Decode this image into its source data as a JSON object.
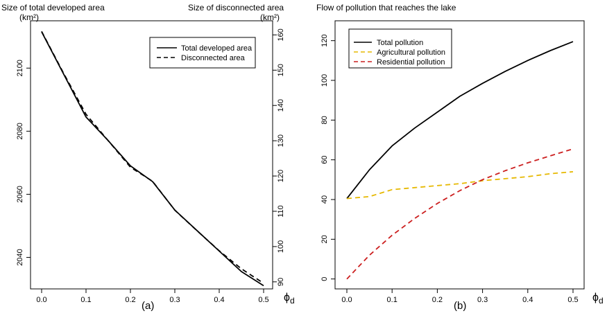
{
  "panels": [
    {
      "label": "(a)",
      "left_title": "Size of total developed area",
      "left_units": "(km²)",
      "right_title": "Size of disconnected area",
      "right_units": "(km²)",
      "x_symbol": "ϕ",
      "x_subscript": "d",
      "legend": [
        "Total developed area",
        "Disconnected area"
      ]
    },
    {
      "label": "(b)",
      "title": "Flow of pollution that reaches the lake",
      "x_symbol": "ϕ",
      "x_subscript": "d",
      "legend": [
        "Total pollution",
        "Agricultural pollution",
        "Residential pollution"
      ]
    }
  ],
  "colors": {
    "total": "#000000",
    "agricultural": "#e6b800",
    "residential": "#cc1f1f"
  },
  "chart_data": [
    {
      "type": "line",
      "title": "",
      "xlabel": "ϕd",
      "ylabel": "Size of total developed area (km²)",
      "y2label": "Size of disconnected area (km²)",
      "xlim": [
        0,
        0.5
      ],
      "ylim": [
        2030,
        2115
      ],
      "y2lim": [
        88,
        164
      ],
      "x_ticks": [
        "0.0",
        "0.1",
        "0.2",
        "0.3",
        "0.4",
        "0.5"
      ],
      "y_ticks": [
        2040,
        2060,
        2080,
        2100
      ],
      "y2_ticks": [
        90,
        100,
        110,
        120,
        130,
        140,
        150,
        160
      ],
      "legend_position": "top-right",
      "series": [
        {
          "name": "Total developed area",
          "axis": "left",
          "style": "solid",
          "x": [
            0.0,
            0.05,
            0.1,
            0.15,
            0.2,
            0.25,
            0.3,
            0.35,
            0.4,
            0.45,
            0.5
          ],
          "values": [
            2111.5,
            2098,
            2084.5,
            2077,
            2069,
            2064,
            2055,
            2048.5,
            2042,
            2035.5,
            2031
          ]
        },
        {
          "name": "Disconnected area",
          "axis": "right",
          "style": "dashed",
          "x": [
            0.0,
            0.05,
            0.1,
            0.15,
            0.2,
            0.25,
            0.3,
            0.35,
            0.4,
            0.45,
            0.5
          ],
          "values": [
            161,
            149,
            137.5,
            130,
            122.5,
            118.5,
            110.3,
            104.5,
            98.8,
            93.7,
            89.6
          ]
        }
      ]
    },
    {
      "type": "line",
      "title": "Flow of pollution that reaches the lake",
      "xlabel": "ϕd",
      "ylabel": "",
      "xlim": [
        0,
        0.5
      ],
      "ylim": [
        -5,
        130
      ],
      "x_ticks": [
        "0.0",
        "0.1",
        "0.2",
        "0.3",
        "0.4",
        "0.5"
      ],
      "y_ticks": [
        0,
        20,
        40,
        60,
        80,
        100,
        120
      ],
      "legend_position": "top-left",
      "series": [
        {
          "name": "Total pollution",
          "style": "solid",
          "color": "#000000",
          "x": [
            0.0,
            0.05,
            0.1,
            0.15,
            0.2,
            0.25,
            0.3,
            0.35,
            0.4,
            0.45,
            0.5
          ],
          "values": [
            40.5,
            55,
            67,
            76,
            84,
            92,
            98.5,
            104.5,
            110,
            115,
            119.5
          ]
        },
        {
          "name": "Agricultural pollution",
          "style": "dashed",
          "color": "#e6b800",
          "x": [
            0.0,
            0.05,
            0.1,
            0.15,
            0.2,
            0.25,
            0.3,
            0.35,
            0.4,
            0.45,
            0.5
          ],
          "values": [
            40.5,
            41.5,
            45,
            46,
            47,
            48,
            49.5,
            50.5,
            51.5,
            53,
            54
          ]
        },
        {
          "name": "Residential pollution",
          "style": "dashed",
          "color": "#cc1f1f",
          "x": [
            0.0,
            0.05,
            0.1,
            0.15,
            0.2,
            0.25,
            0.3,
            0.35,
            0.4,
            0.45,
            0.5
          ],
          "values": [
            0,
            12,
            22,
            30.5,
            38,
            44.5,
            50,
            54.5,
            58.5,
            62,
            65.5
          ]
        }
      ]
    }
  ]
}
